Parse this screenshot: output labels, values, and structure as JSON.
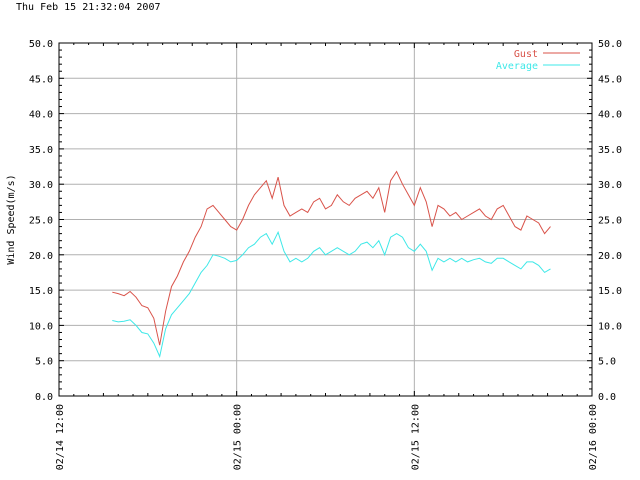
{
  "header": {
    "timestamp": "Thu Feb 15 21:32:04 2007"
  },
  "chart_data": {
    "type": "line",
    "title": "",
    "ylabel": "Wind Speed(m/s)",
    "xlabel": "",
    "ylim": [
      0,
      50
    ],
    "yticks": [
      "0.0",
      "5.0",
      "10.0",
      "15.0",
      "20.0",
      "25.0",
      "30.0",
      "35.0",
      "40.0",
      "45.0",
      "50.0"
    ],
    "xlim": [
      "02/14 12:00",
      "02/16 00:00"
    ],
    "x_major_ticks": [
      "02/14 12:00",
      "02/15 00:00",
      "02/15 12:00",
      "02/16 00:00"
    ],
    "x_tick_hours": [
      0,
      12,
      24,
      36
    ],
    "x_range_hours": 36,
    "grid": true,
    "legend_position": "top-right",
    "colors": {
      "gust": "#d9534a",
      "average": "#3ee8e8",
      "grid": "#b0b0b0"
    },
    "series": [
      {
        "name": "Gust",
        "color": "#d9534a",
        "x_hours": [
          3.6,
          4.0,
          4.4,
          4.8,
          5.2,
          5.6,
          6.0,
          6.4,
          6.8,
          7.2,
          7.6,
          8.0,
          8.4,
          8.8,
          9.2,
          9.6,
          10.0,
          10.4,
          10.8,
          11.2,
          11.6,
          12.0,
          12.4,
          12.8,
          13.2,
          13.6,
          14.0,
          14.4,
          14.8,
          15.2,
          15.6,
          16.0,
          16.4,
          16.8,
          17.2,
          17.6,
          18.0,
          18.4,
          18.8,
          19.2,
          19.6,
          20.0,
          20.4,
          20.8,
          21.2,
          21.6,
          22.0,
          22.4,
          22.8,
          23.2,
          23.6,
          24.0,
          24.4,
          24.8,
          25.2,
          25.6,
          26.0,
          26.4,
          26.8,
          27.2,
          27.6,
          28.0,
          28.4,
          28.8,
          29.2,
          29.6,
          30.0,
          30.4,
          30.8,
          31.2,
          31.6,
          32.0,
          32.4,
          32.8,
          33.2
        ],
        "values": [
          14.7,
          14.5,
          14.2,
          14.8,
          14.0,
          12.8,
          12.5,
          11.0,
          7.2,
          12.0,
          15.5,
          17.0,
          19.0,
          20.5,
          22.5,
          24.0,
          26.5,
          27.0,
          26.0,
          25.0,
          24.0,
          23.5,
          25.0,
          27.0,
          28.5,
          29.5,
          30.5,
          28.0,
          31.0,
          27.0,
          25.5,
          26.0,
          26.5,
          26.0,
          27.5,
          28.0,
          26.5,
          27.0,
          28.5,
          27.5,
          27.0,
          28.0,
          28.5,
          29.0,
          28.0,
          29.5,
          26.0,
          30.5,
          31.8,
          30.0,
          28.5,
          27.0,
          29.5,
          27.5,
          24.0,
          27.0,
          26.5,
          25.5,
          26.0,
          25.0,
          25.5,
          26.0,
          26.5,
          25.5,
          25.0,
          26.5,
          27.0,
          25.5,
          24.0,
          23.5,
          25.5,
          25.0,
          24.5,
          23.0,
          24.0
        ]
      },
      {
        "name": "Average",
        "color": "#3ee8e8",
        "x_hours": [
          3.6,
          4.0,
          4.4,
          4.8,
          5.2,
          5.6,
          6.0,
          6.4,
          6.8,
          7.2,
          7.6,
          8.0,
          8.4,
          8.8,
          9.2,
          9.6,
          10.0,
          10.4,
          10.8,
          11.2,
          11.6,
          12.0,
          12.4,
          12.8,
          13.2,
          13.6,
          14.0,
          14.4,
          14.8,
          15.2,
          15.6,
          16.0,
          16.4,
          16.8,
          17.2,
          17.6,
          18.0,
          18.4,
          18.8,
          19.2,
          19.6,
          20.0,
          20.4,
          20.8,
          21.2,
          21.6,
          22.0,
          22.4,
          22.8,
          23.2,
          23.6,
          24.0,
          24.4,
          24.8,
          25.2,
          25.6,
          26.0,
          26.4,
          26.8,
          27.2,
          27.6,
          28.0,
          28.4,
          28.8,
          29.2,
          29.6,
          30.0,
          30.4,
          30.8,
          31.2,
          31.6,
          32.0,
          32.4,
          32.8,
          33.2
        ],
        "values": [
          10.7,
          10.5,
          10.6,
          10.8,
          10.0,
          9.0,
          8.8,
          7.5,
          5.6,
          9.5,
          11.5,
          12.5,
          13.5,
          14.5,
          16.0,
          17.5,
          18.5,
          20.0,
          19.8,
          19.5,
          19.0,
          19.2,
          20.0,
          21.0,
          21.5,
          22.5,
          23.0,
          21.5,
          23.2,
          20.5,
          19.0,
          19.5,
          19.0,
          19.5,
          20.5,
          21.0,
          20.0,
          20.5,
          21.0,
          20.5,
          20.0,
          20.5,
          21.5,
          21.8,
          21.0,
          22.0,
          20.0,
          22.5,
          23.0,
          22.5,
          21.0,
          20.5,
          21.5,
          20.5,
          17.8,
          19.5,
          19.0,
          19.5,
          19.0,
          19.5,
          19.0,
          19.3,
          19.5,
          19.0,
          18.8,
          19.5,
          19.5,
          19.0,
          18.5,
          18.0,
          19.0,
          19.0,
          18.5,
          17.5,
          18.0
        ]
      }
    ]
  }
}
